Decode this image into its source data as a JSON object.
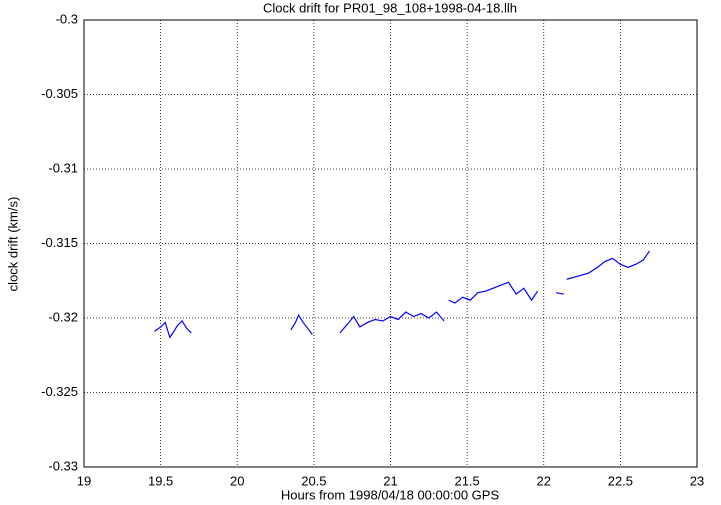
{
  "chart_data": {
    "type": "line",
    "title": "Clock drift for PR01_98_108+1998-04-18.llh",
    "x_label": "Hours from 1998/04/18 00:00:00 GPS",
    "y_label": "clock drift (km/s)",
    "x": [
      19.46,
      19.5,
      19.53,
      19.56,
      19.58,
      19.61,
      19.64,
      19.67,
      19.7,
      20.0,
      20.35,
      20.38,
      20.4,
      20.43,
      20.46,
      20.49,
      20.6,
      20.67,
      20.72,
      20.76,
      20.8,
      20.85,
      20.9,
      20.95,
      21.0,
      21.05,
      21.1,
      21.15,
      21.2,
      21.25,
      21.3,
      21.35,
      21.365,
      21.38,
      21.42,
      21.47,
      21.52,
      21.57,
      21.62,
      21.67,
      21.72,
      21.77,
      21.82,
      21.87,
      21.92,
      21.96,
      22.02,
      22.08,
      22.13,
      22.14,
      22.15,
      22.22,
      22.29,
      22.35,
      22.4,
      22.45,
      22.5,
      22.55,
      22.6,
      22.65,
      22.69
    ],
    "series": [
      {
        "color": "#0000ff",
        "values": [
          -0.3209,
          -0.3206,
          -0.3203,
          -0.3213,
          -0.321,
          -0.3205,
          -0.3202,
          -0.3207,
          -0.321,
          null,
          -0.3208,
          -0.3203,
          -0.3198,
          -0.3203,
          -0.3207,
          -0.3211,
          null,
          -0.321,
          -0.3204,
          -0.3199,
          -0.3206,
          -0.3203,
          -0.3201,
          -0.3202,
          -0.3199,
          -0.3201,
          -0.3196,
          -0.3199,
          -0.3197,
          -0.32,
          -0.3196,
          -0.3202,
          null,
          -0.3188,
          -0.319,
          -0.3186,
          -0.3188,
          -0.3183,
          -0.3182,
          -0.318,
          -0.3178,
          -0.3176,
          -0.3184,
          -0.318,
          -0.3188,
          -0.3182,
          null,
          -0.3183,
          -0.3184,
          null,
          -0.3174,
          -0.3172,
          -0.317,
          -0.3166,
          -0.3162,
          -0.316,
          -0.3164,
          -0.3166,
          -0.3164,
          -0.3161,
          -0.3155
        ]
      }
    ],
    "xlim": [
      19,
      23
    ],
    "xticks": [
      19,
      19.5,
      20,
      20.5,
      21,
      21.5,
      22,
      22.5,
      23
    ],
    "ylim": [
      -0.33,
      -0.3
    ],
    "yticks": [
      -0.33,
      -0.325,
      -0.32,
      -0.315,
      -0.31,
      -0.305,
      -0.3
    ],
    "grid": true
  }
}
